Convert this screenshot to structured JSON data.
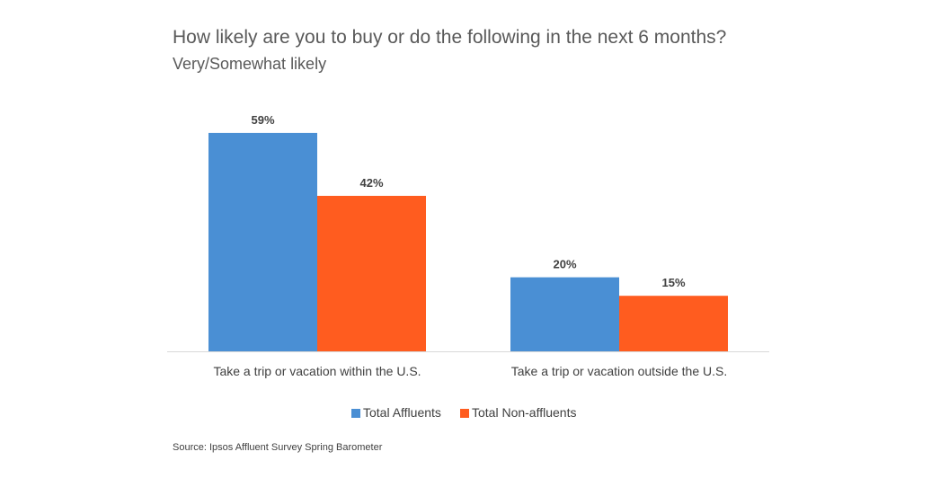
{
  "chart_data": {
    "type": "bar",
    "title": "How likely are you to buy or do the following in the next 6 months?",
    "subtitle": "Very/Somewhat likely",
    "categories": [
      "Take a trip or vacation within the U.S.",
      "Take a trip or vacation outside the U.S."
    ],
    "series": [
      {
        "name": "Total Affluents",
        "values": [
          59,
          20
        ],
        "labels": [
          "59%",
          "20%"
        ],
        "color": "#4A8FD4"
      },
      {
        "name": "Total Non-affluents",
        "values": [
          42,
          15
        ],
        "labels": [
          "42%",
          "15%"
        ],
        "color": "#FF5C1F"
      }
    ],
    "ylim": [
      0,
      65
    ],
    "grid": false,
    "legend": "bottom",
    "source": "Source: Ipsos Affluent Survey Spring Barometer"
  }
}
